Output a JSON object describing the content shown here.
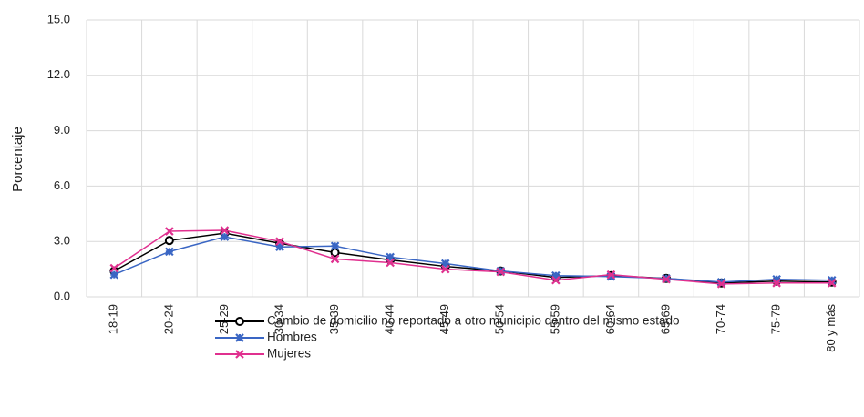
{
  "chart_data": {
    "type": "line",
    "y_label": "Porcentaje",
    "categories": [
      "18-19",
      "20-24",
      "25-29",
      "30-34",
      "35-39",
      "40-44",
      "45-49",
      "50-54",
      "55-59",
      "60-64",
      "65-69",
      "70-74",
      "75-79",
      "80 y más"
    ],
    "series": [
      {
        "name": "Cambio de domicilio no reportado a otro municipio dentro del mismo estado",
        "color": "#000000",
        "marker": "circle",
        "values": [
          1.4,
          3.05,
          3.45,
          2.9,
          2.4,
          2.0,
          1.65,
          1.4,
          1.05,
          1.15,
          1.0,
          0.75,
          0.85,
          0.8
        ]
      },
      {
        "name": "Hombres",
        "color": "#3a66c4",
        "marker": "star",
        "values": [
          1.2,
          2.45,
          3.25,
          2.7,
          2.75,
          2.15,
          1.8,
          1.4,
          1.15,
          1.1,
          1.0,
          0.8,
          0.95,
          0.9
        ]
      },
      {
        "name": "Mujeres",
        "color": "#e0308f",
        "marker": "x",
        "values": [
          1.55,
          3.55,
          3.6,
          3.0,
          2.05,
          1.85,
          1.5,
          1.35,
          0.9,
          1.2,
          0.95,
          0.7,
          0.75,
          0.75
        ]
      }
    ],
    "ylim": [
      0,
      15
    ],
    "yticks": [
      {
        "value": 0,
        "label": "0.0"
      },
      {
        "value": 3,
        "label": "3.0"
      },
      {
        "value": 6,
        "label": "6.0"
      },
      {
        "value": 9,
        "label": "9.0"
      },
      {
        "value": 12,
        "label": "12.0"
      },
      {
        "value": 15,
        "label": "15.0"
      }
    ],
    "grid": true
  }
}
